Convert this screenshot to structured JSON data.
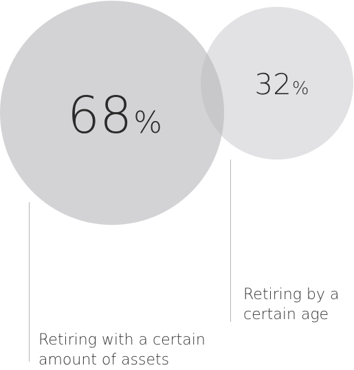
{
  "chart_data": {
    "type": "bubble",
    "title": "",
    "series": [
      {
        "value": 68,
        "unit": "%",
        "label": "Retiring with a certain amount of assets",
        "label_lines": [
          "Retiring with a certain",
          "amount of assets"
        ],
        "color": "#d3d3d5"
      },
      {
        "value": 32,
        "unit": "%",
        "label": "Retiring by a certain age",
        "label_lines": [
          "Retiring by a",
          "certain age"
        ],
        "color": "#e2e2e4"
      }
    ],
    "overlap_color": "#c8c8cb"
  }
}
